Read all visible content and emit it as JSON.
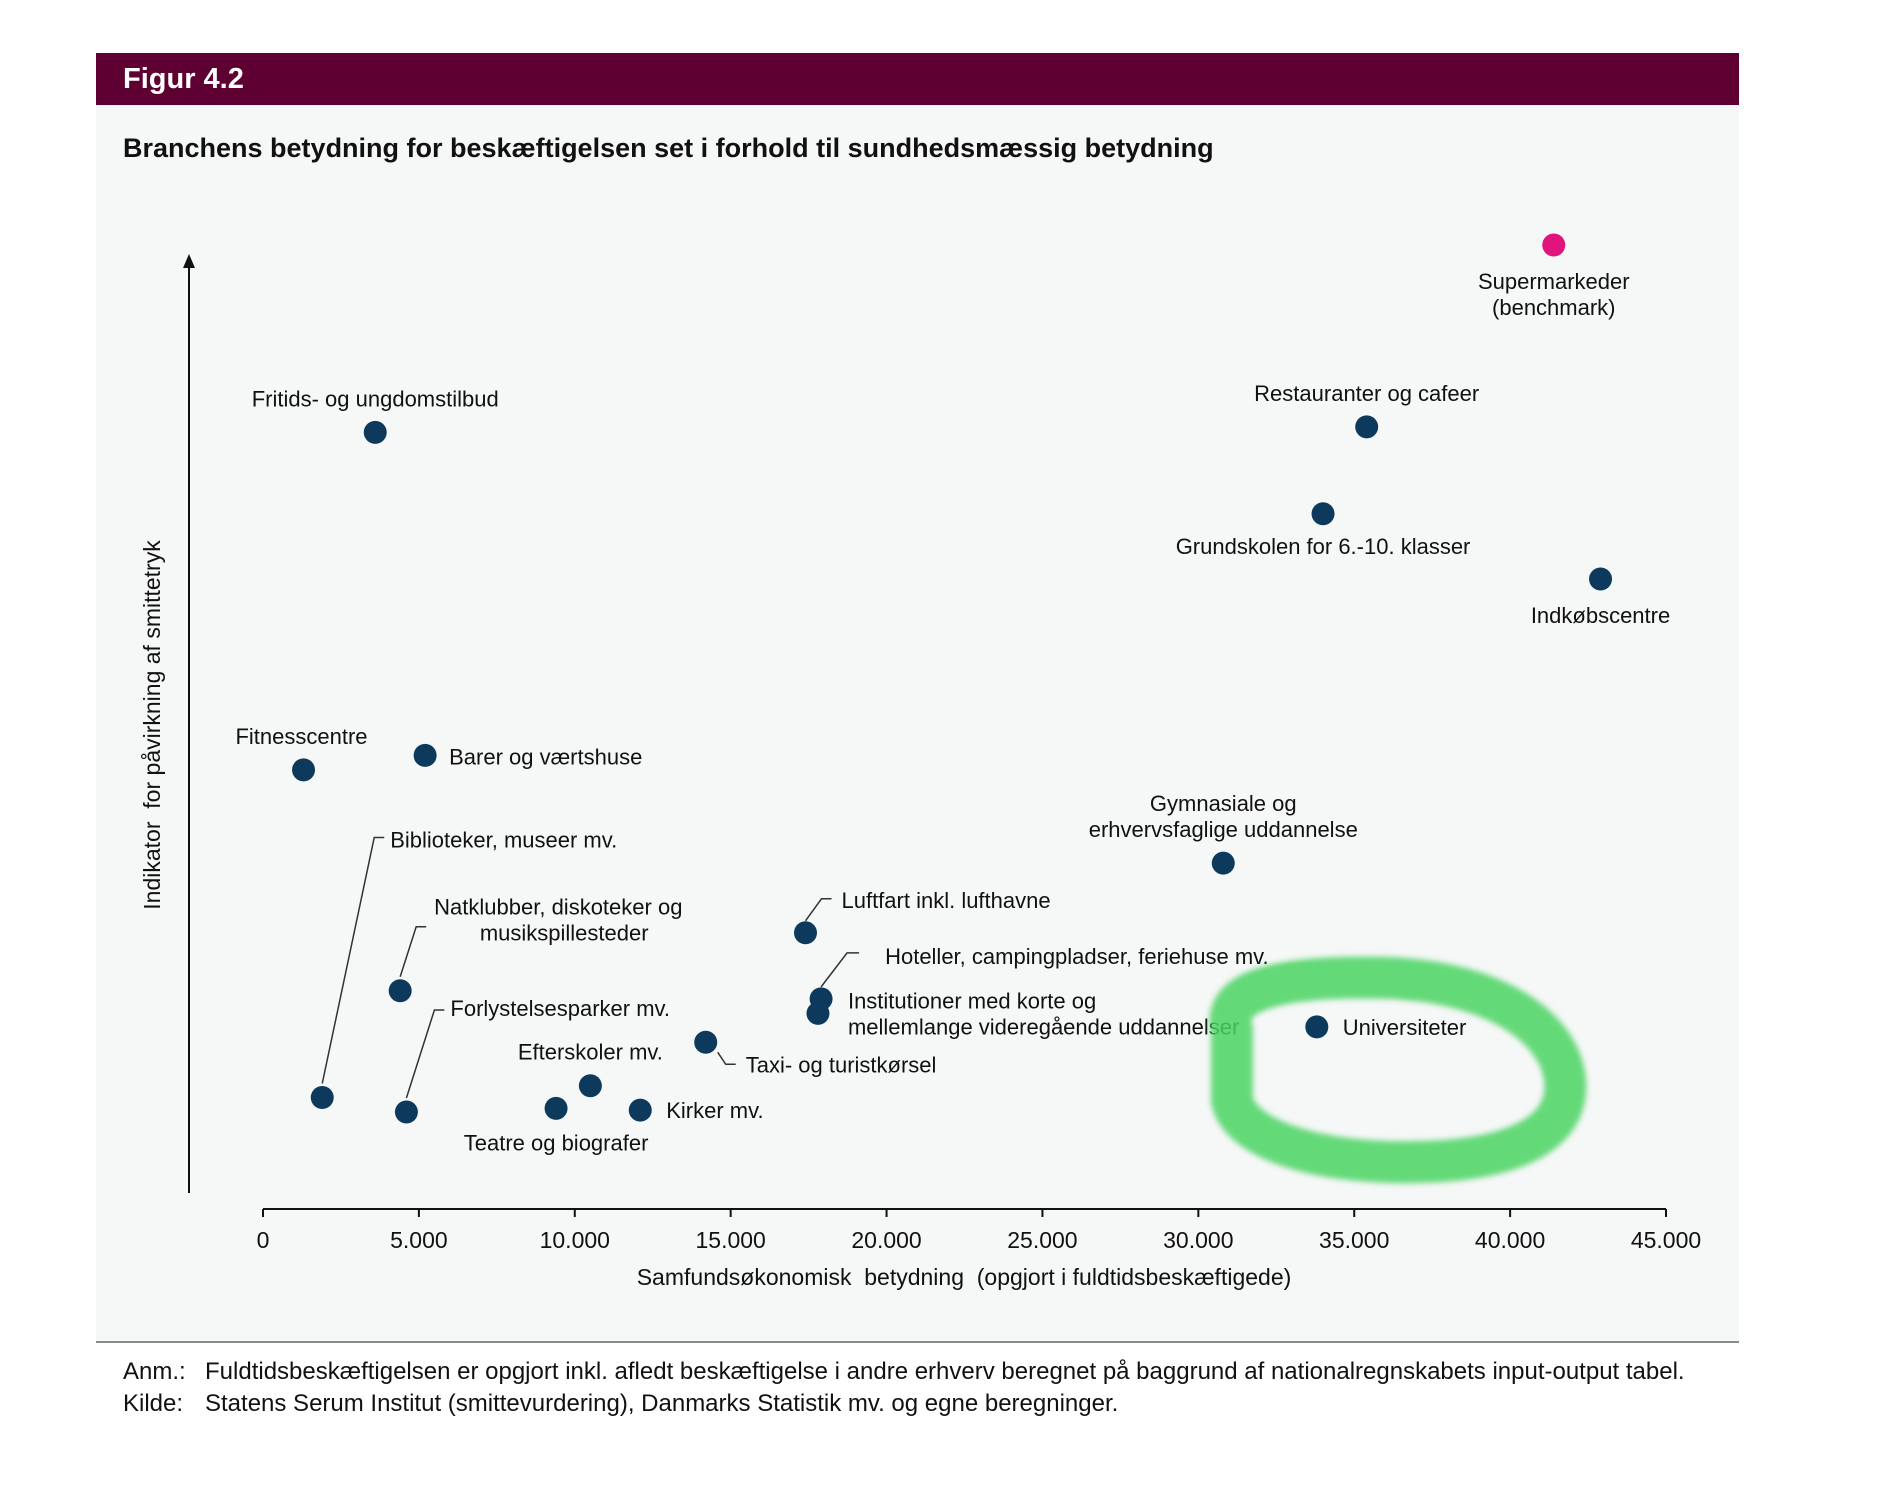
{
  "figure": {
    "label": "Figur 4.2",
    "title": "Branchens betydning for beskæftigelsen set i forhold til sundhedsmæssig betydning",
    "banner_color": "#5e0031"
  },
  "chart_data": {
    "type": "scatter",
    "title": "Branchens betydning for beskæftigelsen set i forhold til sundhedsmæssig betydning",
    "xlabel": "Samfundsøkonomisk  betydning  (opgjort i fuldtidsbeskæftigede)",
    "ylabel": "Indikator  for påvirkning af smittetryk",
    "xlim": [
      0,
      45000
    ],
    "ylim": [
      0,
      100
    ],
    "xticks": [
      0,
      5000,
      10000,
      15000,
      20000,
      25000,
      30000,
      35000,
      40000,
      45000
    ],
    "xtick_labels": [
      "0",
      "5.000",
      "10.000",
      "15.000",
      "20.000",
      "25.000",
      "30.000",
      "35.000",
      "40.000",
      "45.000"
    ],
    "point_color": "#0d3a5c",
    "benchmark_color": "#e0147a",
    "points": [
      {
        "name": "Supermarkeder (benchmark)",
        "lines": [
          "Supermarkeder",
          "(benchmark)"
        ],
        "x": 41400,
        "y": 100,
        "benchmark": true
      },
      {
        "name": "Restauranter og cafeer",
        "lines": [
          "Restauranter og cafeer"
        ],
        "x": 35400,
        "y": 79.9
      },
      {
        "name": "Grundskolen for 6.-10. klasser",
        "lines": [
          "Grundskolen for 6.-10. klasser"
        ],
        "x": 34000,
        "y": 70.3
      },
      {
        "name": "Indkøbscentre",
        "lines": [
          "Indkøbscentre"
        ],
        "x": 42900,
        "y": 63.1
      },
      {
        "name": "Fritids- og ungdomstilbud",
        "lines": [
          "Fritids- og ungdomstilbud"
        ],
        "x": 3600,
        "y": 79.3
      },
      {
        "name": "Fitnesscentre",
        "lines": [
          "Fitnesscentre"
        ],
        "x": 1300,
        "y": 42.0
      },
      {
        "name": "Barer og værtshuse",
        "lines": [
          "Barer og værtshuse"
        ],
        "x": 5200,
        "y": 43.6
      },
      {
        "name": "Gymnasiale og erhvervsfaglige uddannelse",
        "lines": [
          "Gymnasiale og",
          "erhvervsfaglige  uddannelse"
        ],
        "x": 30800,
        "y": 31.7
      },
      {
        "name": "Biblioteker, museer mv.",
        "lines": [
          "Biblioteker,  museer mv."
        ],
        "x": 1900,
        "y": 5.8
      },
      {
        "name": "Natklubber, diskoteker og musikspillesteder",
        "lines": [
          "Natklubber,  diskoteker og",
          "musikspillesteder"
        ],
        "x": 4400,
        "y": 17.6
      },
      {
        "name": "Luftfart inkl. lufthavne",
        "lines": [
          "Luftfart inkl. lufthavne"
        ],
        "x": 17400,
        "y": 24.0
      },
      {
        "name": "Hoteller, campingpladser, feriehuse mv.",
        "lines": [
          "Hoteller,  campingpladser, feriehuse mv."
        ],
        "x": 17900,
        "y": 16.7
      },
      {
        "name": "Institutioner med korte og mellemlange videregående uddannelser",
        "lines": [
          "Institutioner  med korte og",
          "mellemlange videregående  uddannelser"
        ],
        "x": 17800,
        "y": 15.1
      },
      {
        "name": "Universiteter",
        "lines": [
          "Universiteter"
        ],
        "x": 33800,
        "y": 13.6
      },
      {
        "name": "Forlystelsesparker mv.",
        "lines": [
          "Forlystelsesparker mv."
        ],
        "x": 4600,
        "y": 4.2
      },
      {
        "name": "Efterskoler mv.",
        "lines": [
          "Efterskoler mv."
        ],
        "x": 10500,
        "y": 7.1
      },
      {
        "name": "Taxi- og turistkørsel",
        "lines": [
          "Taxi- og turistkørsel"
        ],
        "x": 14200,
        "y": 11.9
      },
      {
        "name": "Teatre og biografer",
        "lines": [
          "Teatre og biografer"
        ],
        "x": 9400,
        "y": 4.6
      },
      {
        "name": "Kirker mv.",
        "lines": [
          "Kirker mv."
        ],
        "x": 12100,
        "y": 4.4
      }
    ]
  },
  "notes": [
    {
      "label": "Anm.:",
      "text": "Fuldtidsbeskæftigelsen er opgjort inkl. afledt beskæftigelse i andre erhverv beregnet på baggrund af nationalregnskabets input-output tabel."
    },
    {
      "label": "Kilde:",
      "text": "Statens Serum Institut (smittevurdering), Danmarks Statistik mv. og egne beregninger."
    }
  ],
  "highlight": {
    "color": "#4cd463",
    "target": "Universiteter"
  }
}
